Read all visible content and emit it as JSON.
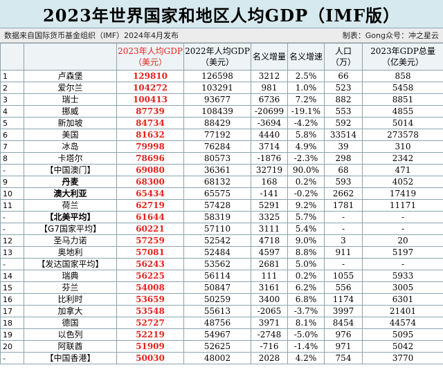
{
  "title": "2023年世界国家和地区人均GDP（IMF版）",
  "source": "数据来自国际货币基金组织（IMF）2024年4月发布",
  "credit": "制表：Gong众号：冲之星云",
  "headers": {
    "rank": "",
    "country": "",
    "gdp2023_line1": "2023年人均GDP",
    "gdp2023_line2": "（美元）",
    "gdp2022_line1": "2022年人均GDP",
    "gdp2022_line2": "（美元）",
    "increase": "名义增量",
    "growth": "名义增速",
    "pop_line1": "人口",
    "pop_line2": "（万）",
    "total_line1": "2023年GDP总量",
    "total_line2": "（亿美元）"
  },
  "rows": [
    {
      "rank": "1",
      "country": "卢森堡",
      "gdp2023": "129810",
      "gdp2022": "126598",
      "increase": "3212",
      "growth": "2.5%",
      "pop": "66",
      "total": "858",
      "bold": false
    },
    {
      "rank": "2",
      "country": "爱尔兰",
      "gdp2023": "104272",
      "gdp2022": "103291",
      "increase": "981",
      "growth": "1.0%",
      "pop": "523",
      "total": "5458",
      "bold": false
    },
    {
      "rank": "3",
      "country": "瑞士",
      "gdp2023": "100413",
      "gdp2022": "93677",
      "increase": "6736",
      "growth": "7.2%",
      "pop": "882",
      "total": "8851",
      "bold": false
    },
    {
      "rank": "4",
      "country": "挪威",
      "gdp2023": "87739",
      "gdp2022": "108439",
      "increase": "-20699",
      "growth": "-19.1%",
      "pop": "553",
      "total": "4855",
      "bold": false
    },
    {
      "rank": "5",
      "country": "新加坡",
      "gdp2023": "84734",
      "gdp2022": "88429",
      "increase": "-3694",
      "growth": "-4.2%",
      "pop": "592",
      "total": "5014",
      "bold": false
    },
    {
      "rank": "6",
      "country": "美国",
      "gdp2023": "81632",
      "gdp2022": "77192",
      "increase": "4440",
      "growth": "5.8%",
      "pop": "33514",
      "total": "273578",
      "bold": false
    },
    {
      "rank": "7",
      "country": "冰岛",
      "gdp2023": "79998",
      "gdp2022": "76284",
      "increase": "3714",
      "growth": "4.9%",
      "pop": "39",
      "total": "310",
      "bold": false
    },
    {
      "rank": "8",
      "country": "卡塔尔",
      "gdp2023": "78696",
      "gdp2022": "80573",
      "increase": "-1876",
      "growth": "-2.3%",
      "pop": "298",
      "total": "2342",
      "bold": false
    },
    {
      "rank": "-",
      "country": "【中国澳门】",
      "gdp2023": "69080",
      "gdp2022": "36361",
      "increase": "32719",
      "growth": "90.0%",
      "pop": "68",
      "total": "471",
      "bold": false
    },
    {
      "rank": "9",
      "country": "丹麦",
      "gdp2023": "68300",
      "gdp2022": "68132",
      "increase": "168",
      "growth": "0.2%",
      "pop": "593",
      "total": "4052",
      "bold": true
    },
    {
      "rank": "10",
      "country": "澳大利亚",
      "gdp2023": "65434",
      "gdp2022": "65575",
      "increase": "-141",
      "growth": "-0.2%",
      "pop": "2662",
      "total": "17419",
      "bold": true
    },
    {
      "rank": "11",
      "country": "荷兰",
      "gdp2023": "62719",
      "gdp2022": "57428",
      "increase": "5291",
      "growth": "9.2%",
      "pop": "1781",
      "total": "11171",
      "bold": false
    },
    {
      "rank": "-",
      "country": "【北美平均】",
      "gdp2023": "61644",
      "gdp2022": "58319",
      "increase": "3325",
      "growth": "5.7%",
      "pop": "-",
      "total": "-",
      "bold": true
    },
    {
      "rank": "-",
      "country": "【G7国家平均】",
      "gdp2023": "60221",
      "gdp2022": "57110",
      "increase": "3111",
      "growth": "5.4%",
      "pop": "-",
      "total": "-",
      "bold": false
    },
    {
      "rank": "12",
      "country": "圣马力诺",
      "gdp2023": "57259",
      "gdp2022": "52542",
      "increase": "4718",
      "growth": "9.0%",
      "pop": "3",
      "total": "20",
      "bold": false
    },
    {
      "rank": "13",
      "country": "奥地利",
      "gdp2023": "57081",
      "gdp2022": "52484",
      "increase": "4597",
      "growth": "8.8%",
      "pop": "911",
      "total": "5197",
      "bold": false
    },
    {
      "rank": "-",
      "country": "【发达国家平均】",
      "gdp2023": "56243",
      "gdp2022": "53562",
      "increase": "2681",
      "growth": "5.0%",
      "pop": "-",
      "total": "-",
      "bold": false
    },
    {
      "rank": "14",
      "country": "瑞典",
      "gdp2023": "56225",
      "gdp2022": "56114",
      "increase": "111",
      "growth": "0.2%",
      "pop": "1055",
      "total": "5933",
      "bold": false
    },
    {
      "rank": "15",
      "country": "芬兰",
      "gdp2023": "54008",
      "gdp2022": "50847",
      "increase": "3161",
      "growth": "6.2%",
      "pop": "556",
      "total": "3005",
      "bold": false
    },
    {
      "rank": "16",
      "country": "比利时",
      "gdp2023": "53659",
      "gdp2022": "50259",
      "increase": "3400",
      "growth": "6.8%",
      "pop": "1174",
      "total": "6301",
      "bold": false
    },
    {
      "rank": "17",
      "country": "加拿大",
      "gdp2023": "53548",
      "gdp2022": "55613",
      "increase": "-2065",
      "growth": "-3.7%",
      "pop": "3997",
      "total": "21401",
      "bold": false
    },
    {
      "rank": "18",
      "country": "德国",
      "gdp2023": "52727",
      "gdp2022": "48756",
      "increase": "3971",
      "growth": "8.1%",
      "pop": "8454",
      "total": "44574",
      "bold": false
    },
    {
      "rank": "19",
      "country": "以色列",
      "gdp2023": "52219",
      "gdp2022": "54967",
      "increase": "-2748",
      "growth": "-5.0%",
      "pop": "976",
      "total": "5095",
      "bold": false
    },
    {
      "rank": "20",
      "country": "阿联酋",
      "gdp2023": "51909",
      "gdp2022": "52625",
      "increase": "-716",
      "growth": "-1.4%",
      "pop": "971",
      "total": "5042",
      "bold": false
    },
    {
      "rank": "-",
      "country": "【中国香港】",
      "gdp2023": "50030",
      "gdp2022": "48002",
      "increase": "2028",
      "growth": "4.2%",
      "pop": "754",
      "total": "3770",
      "bold": false
    }
  ]
}
